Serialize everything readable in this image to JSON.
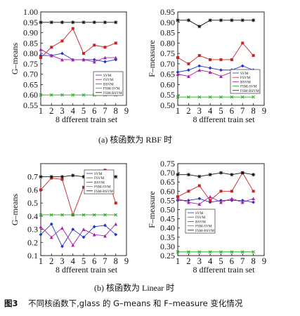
{
  "caption": {
    "sub_a": "(a) 核函数为 RBF 时",
    "sub_b": "(b) 核函数为 Linear 时",
    "figure_number": "图3",
    "figure_text": "不同核函数下,glass 的 G–means 和 F–measure 变化情况"
  },
  "series_styles": [
    {
      "name": "SVM",
      "color": "#2233cc",
      "marker": "diamond"
    },
    {
      "name": "FSVM",
      "color": "#cc2222",
      "marker": "square"
    },
    {
      "name": "BSVM",
      "color": "#aa22aa",
      "marker": "triangle"
    },
    {
      "name": "FSM-SVM",
      "color": "#22aa22",
      "marker": "x"
    },
    {
      "name": "FSM-BSVM",
      "color": "#111111",
      "marker": "star"
    }
  ],
  "chart_data": [
    {
      "type": "line",
      "panel": "a-left",
      "xlabel": "8 dfferent train set",
      "ylabel": "G–means",
      "x_ticks": [
        1,
        2,
        3,
        4,
        5,
        6,
        7,
        8,
        9
      ],
      "xlim": [
        1,
        9
      ],
      "ylim": [
        0.55,
        1.0
      ],
      "y_ticks": [
        0.55,
        0.6,
        0.65,
        0.7,
        0.75,
        0.8,
        0.85,
        0.9,
        0.95,
        1.0
      ],
      "y_tick_labels": [
        "0.55",
        "0.60",
        "0.65",
        "0.70",
        "0.75",
        "0.80",
        "0.85",
        "0.90",
        "0.95",
        "1.00"
      ],
      "grid": false,
      "legend_position": "center-right",
      "x": [
        1,
        2,
        3,
        4,
        5,
        6,
        7,
        8
      ],
      "series": [
        {
          "name": "SVM",
          "values": [
            0.79,
            0.79,
            0.8,
            0.77,
            0.77,
            0.77,
            0.76,
            0.77
          ]
        },
        {
          "name": "FSVM",
          "values": [
            0.78,
            0.83,
            0.86,
            0.92,
            0.8,
            0.84,
            0.83,
            0.85
          ]
        },
        {
          "name": "BSVM",
          "values": [
            0.82,
            0.79,
            0.77,
            0.77,
            0.77,
            0.76,
            0.78,
            0.78
          ]
        },
        {
          "name": "FSM-SVM",
          "values": [
            0.6,
            0.6,
            0.6,
            0.6,
            0.6,
            0.6,
            0.6,
            0.6
          ]
        },
        {
          "name": "FSM-BSVM",
          "values": [
            0.95,
            0.95,
            0.95,
            0.95,
            0.95,
            0.95,
            0.95,
            0.95
          ]
        }
      ]
    },
    {
      "type": "line",
      "panel": "a-right",
      "xlabel": "8 dfferent train set",
      "ylabel": "F–measure",
      "x_ticks": [
        1,
        2,
        3,
        4,
        5,
        6,
        7,
        8,
        9
      ],
      "xlim": [
        1,
        9
      ],
      "ylim": [
        0.5,
        0.95
      ],
      "y_ticks": [
        0.5,
        0.55,
        0.6,
        0.65,
        0.7,
        0.75,
        0.8,
        0.85,
        0.9,
        0.95
      ],
      "y_tick_labels": [
        "0.50",
        "0.55",
        "0.60",
        "0.65",
        "0.70",
        "0.75",
        "0.80",
        "0.85",
        "0.90",
        "0.95"
      ],
      "grid": false,
      "legend_position": "center-right",
      "x": [
        1,
        2,
        3,
        4,
        5,
        6,
        7,
        8
      ],
      "series": [
        {
          "name": "SVM",
          "values": [
            0.66,
            0.67,
            0.69,
            0.68,
            0.67,
            0.67,
            0.69,
            0.67
          ]
        },
        {
          "name": "FSVM",
          "values": [
            0.73,
            0.7,
            0.74,
            0.72,
            0.72,
            0.72,
            0.8,
            0.74
          ]
        },
        {
          "name": "BSVM",
          "values": [
            0.65,
            0.64,
            0.67,
            0.66,
            0.64,
            0.66,
            0.64,
            0.65
          ]
        },
        {
          "name": "FSM-SVM",
          "values": [
            0.54,
            0.54,
            0.54,
            0.54,
            0.54,
            0.54,
            0.54,
            0.54
          ]
        },
        {
          "name": "FSM-BSVM",
          "values": [
            0.91,
            0.91,
            0.88,
            0.91,
            0.91,
            0.91,
            0.91,
            0.91
          ]
        }
      ]
    },
    {
      "type": "line",
      "panel": "b-left",
      "xlabel": "8 dfferent train set",
      "ylabel": "G–means",
      "x_ticks": [
        1,
        2,
        3,
        4,
        5,
        6,
        7,
        8,
        9
      ],
      "xlim": [
        1,
        9
      ],
      "ylim": [
        0.1,
        0.8
      ],
      "y_ticks": [
        0.1,
        0.2,
        0.3,
        0.4,
        0.5,
        0.6,
        0.7
      ],
      "y_tick_labels": [
        "0.1",
        "0.2",
        "0.3",
        "0.4",
        "0.5",
        "0.6",
        "0.7"
      ],
      "grid": false,
      "legend_position": "top-right",
      "x": [
        1,
        2,
        3,
        4,
        5,
        6,
        7,
        8
      ],
      "series": [
        {
          "name": "SVM",
          "values": [
            0.26,
            0.34,
            0.17,
            0.3,
            0.24,
            0.32,
            0.33,
            0.26
          ]
        },
        {
          "name": "FSVM",
          "values": [
            0.6,
            0.69,
            0.68,
            0.41,
            0.62,
            0.62,
            0.75,
            0.5
          ]
        },
        {
          "name": "BSVM",
          "values": [
            0.32,
            0.24,
            0.31,
            0.18,
            0.3,
            0.26,
            0.25,
            0.34
          ]
        },
        {
          "name": "FSM-SVM",
          "values": [
            0.41,
            0.41,
            0.41,
            0.41,
            0.41,
            0.41,
            0.41,
            0.41
          ]
        },
        {
          "name": "FSM-BSVM",
          "values": [
            0.7,
            0.7,
            0.7,
            0.71,
            0.7,
            0.7,
            0.7,
            0.7
          ]
        }
      ]
    },
    {
      "type": "line",
      "panel": "b-right",
      "xlabel": "8 dfferent train set",
      "ylabel": "F–measure",
      "x_ticks": [
        1,
        2,
        3,
        4,
        5,
        6,
        7,
        8,
        9
      ],
      "xlim": [
        1,
        9
      ],
      "ylim": [
        0.25,
        0.75
      ],
      "y_ticks": [
        0.25,
        0.3,
        0.35,
        0.4,
        0.45,
        0.5,
        0.55,
        0.6,
        0.65,
        0.7,
        0.75
      ],
      "y_tick_labels": [
        "0.25",
        "0.30",
        "0.35",
        "0.40",
        "0.45",
        "0.50",
        "0.55",
        "0.60",
        "0.65",
        "0.70",
        "0.75"
      ],
      "grid": false,
      "legend_position": "center-left",
      "x": [
        1,
        2,
        3,
        4,
        5,
        6,
        7,
        8
      ],
      "series": [
        {
          "name": "SVM",
          "values": [
            0.55,
            0.55,
            0.56,
            0.54,
            0.55,
            0.55,
            0.55,
            0.54
          ]
        },
        {
          "name": "FSVM",
          "values": [
            0.57,
            0.6,
            0.63,
            0.55,
            0.6,
            0.6,
            0.7,
            0.6
          ]
        },
        {
          "name": "BSVM",
          "values": [
            0.56,
            0.54,
            0.53,
            0.57,
            0.54,
            0.56,
            0.54,
            0.56
          ]
        },
        {
          "name": "FSM-SVM",
          "values": [
            0.27,
            0.27,
            0.27,
            0.27,
            0.27,
            0.27,
            0.27,
            0.27
          ]
        },
        {
          "name": "FSM-BSVM",
          "values": [
            0.69,
            0.69,
            0.68,
            0.69,
            0.7,
            0.69,
            0.7,
            0.69
          ]
        }
      ]
    }
  ]
}
